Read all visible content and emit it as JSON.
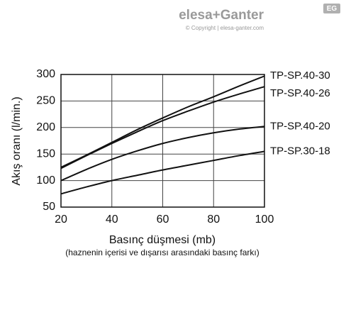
{
  "logo": {
    "brand": "elesa+Ganter",
    "badge": "EG",
    "copyright": "© Copyright | elesa-ganter.com"
  },
  "chart_data": {
    "type": "line",
    "ylabel": "Akış oranı (l/min.)",
    "xlabel": "Basınç düşmesi (mb)",
    "x_note": "(haznenin içerisi ve dışarısı arasındaki basınç farkı)",
    "x": [
      20,
      30,
      40,
      50,
      60,
      70,
      80,
      90,
      100
    ],
    "series": [
      {
        "name": "TP-SP.40-30",
        "color": "#111111",
        "values": [
          125,
          148,
          172,
          196,
          218,
          239,
          258,
          278,
          297
        ]
      },
      {
        "name": "TP-SP.40-26",
        "color": "#111111",
        "values": [
          123,
          147,
          170,
          192,
          213,
          231,
          248,
          263,
          277
        ]
      },
      {
        "name": "TP-SP.40-20",
        "color": "#111111",
        "values": [
          100,
          121,
          140,
          156,
          170,
          181,
          190,
          197,
          202
        ]
      },
      {
        "name": "TP-SP.30-18",
        "color": "#111111",
        "values": [
          75,
          88,
          100,
          110,
          120,
          129,
          138,
          147,
          155
        ]
      }
    ],
    "xlim": [
      20,
      100
    ],
    "xticks": [
      20,
      40,
      60,
      80,
      100
    ],
    "ylim": [
      50,
      300
    ],
    "yticks": [
      50,
      100,
      150,
      200,
      250,
      300
    ],
    "grid": true
  }
}
